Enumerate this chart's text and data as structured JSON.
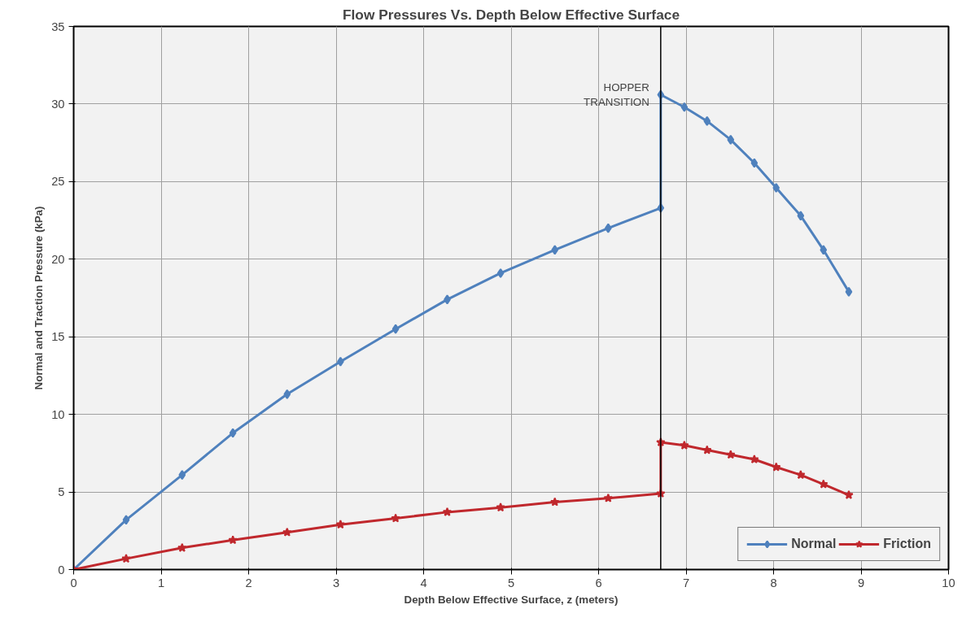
{
  "chart_data": {
    "type": "line",
    "title": "Flow Pressures Vs. Depth Below Effective Surface",
    "xlabel": "Depth Below Effective Surface, z (meters)",
    "ylabel": "Normal and Traction Pressure (kPa)",
    "x": [
      0,
      0.6,
      1.24,
      1.82,
      2.44,
      3.05,
      3.68,
      4.27,
      4.88,
      5.5,
      6.11,
      6.71,
      6.71,
      6.98,
      7.24,
      7.51,
      7.78,
      8.03,
      8.31,
      8.57,
      8.86
    ],
    "series": [
      {
        "name": "Normal",
        "color": "#4f81bd",
        "marker": "diamond",
        "values": [
          0,
          3.2,
          6.1,
          8.8,
          11.3,
          13.4,
          15.5,
          17.4,
          19.1,
          20.6,
          22.0,
          23.3,
          30.6,
          29.8,
          28.9,
          27.7,
          26.2,
          24.6,
          22.8,
          20.6,
          17.9
        ]
      },
      {
        "name": "Friction",
        "color": "#c0282d",
        "marker": "star",
        "values": [
          0,
          0.7,
          1.4,
          1.9,
          2.4,
          2.9,
          3.3,
          3.7,
          4.0,
          4.35,
          4.6,
          4.9,
          8.2,
          8.0,
          7.7,
          7.4,
          7.1,
          6.6,
          6.1,
          5.5,
          4.8
        ]
      }
    ],
    "ref_lines": [
      {
        "axis": "x",
        "value": 6.71,
        "label": "HOPPER\nTRANSITION",
        "color": "#000000"
      }
    ],
    "xlim": [
      0,
      10
    ],
    "ylim": [
      0,
      35
    ],
    "xticks": [
      0,
      1,
      2,
      3,
      4,
      5,
      6,
      7,
      8,
      9,
      10
    ],
    "yticks": [
      0,
      5,
      10,
      15,
      20,
      25,
      30,
      35
    ],
    "grid": true,
    "legend": "bottom right",
    "line_style": "solid"
  }
}
